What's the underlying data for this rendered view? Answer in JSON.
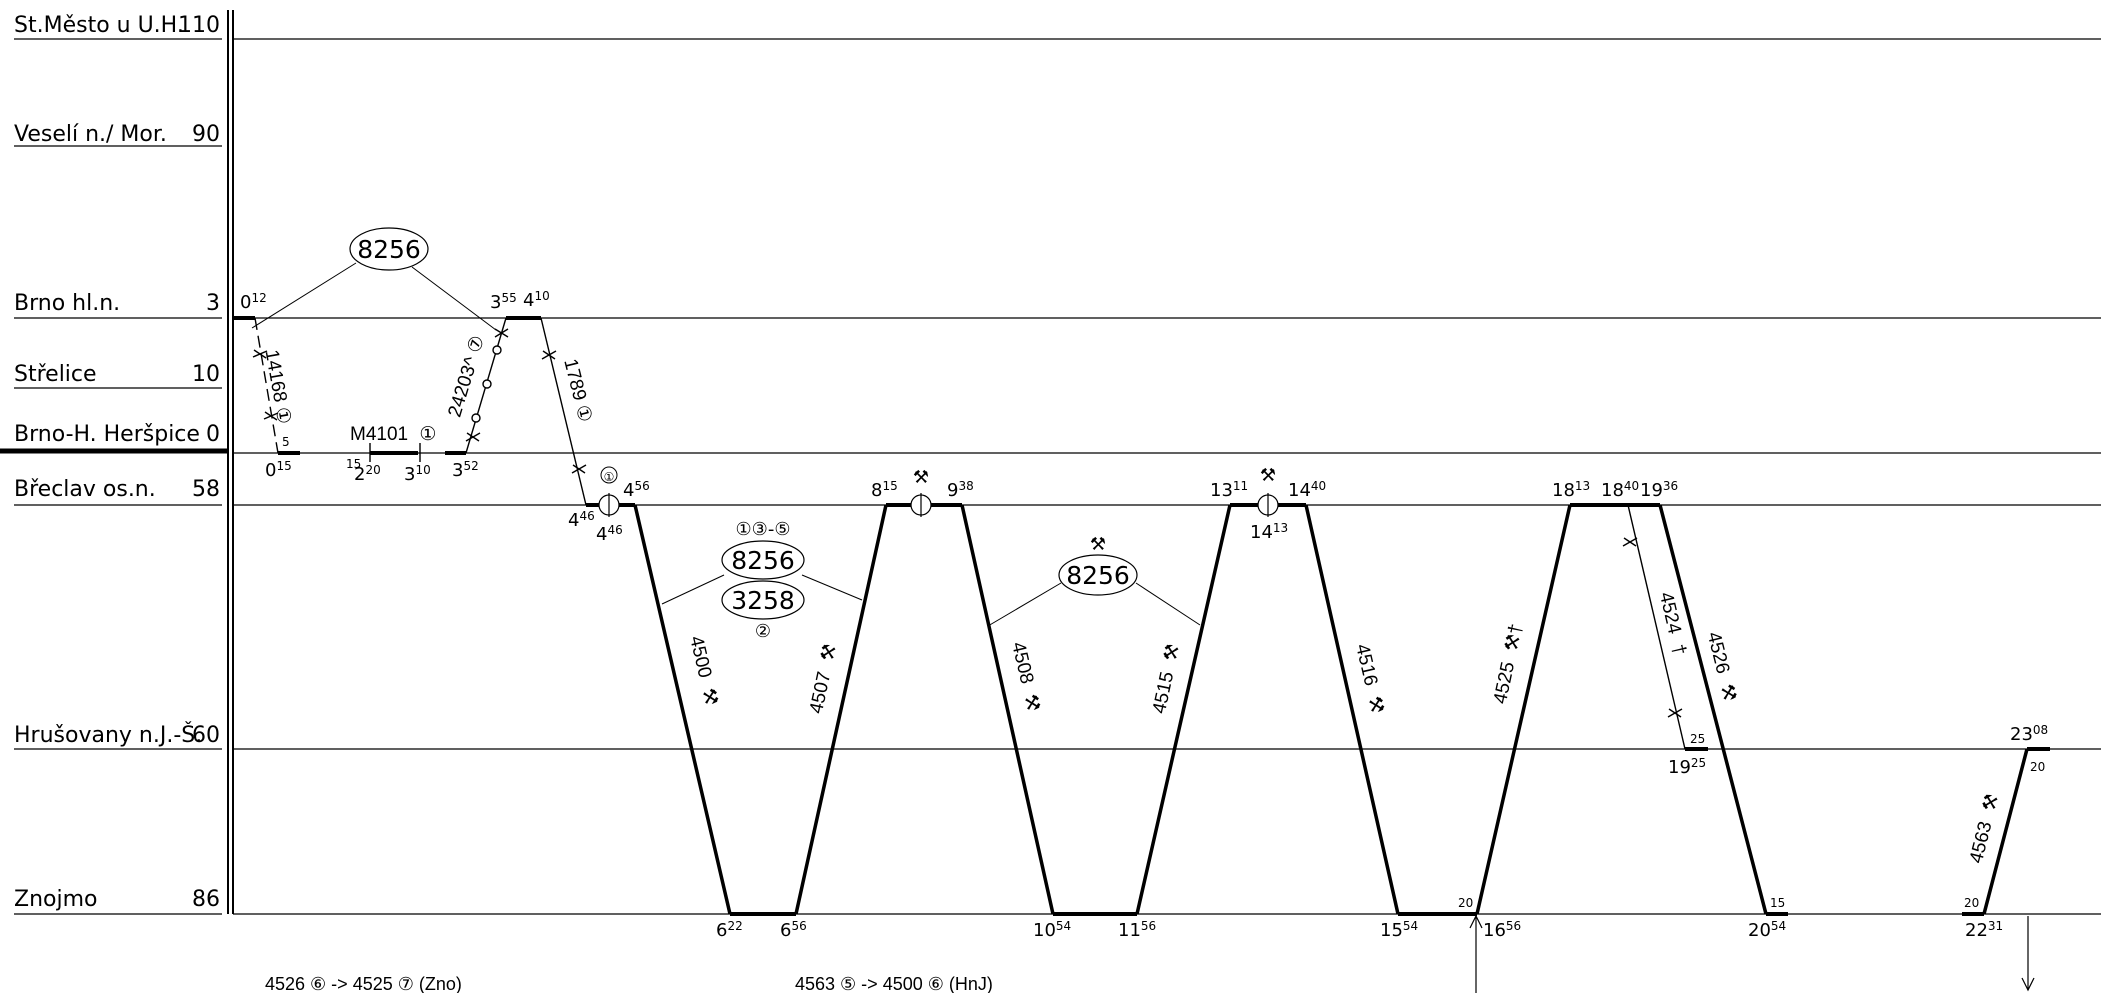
{
  "stations": [
    {
      "id": "stmesto",
      "name": "St.Město u U.H.",
      "km": "110"
    },
    {
      "id": "veseli",
      "name": "Veselí n./ Mor.",
      "km": "90"
    },
    {
      "id": "brnohl",
      "name": "Brno hl.n.",
      "km": "3"
    },
    {
      "id": "strelice",
      "name": "Střelice",
      "km": "10"
    },
    {
      "id": "herspice",
      "name": "Brno-H. Heršpice",
      "km": "0"
    },
    {
      "id": "breclav",
      "name": "Břeclav os.n.",
      "km": "58"
    },
    {
      "id": "hrusovany",
      "name": "Hrušovany n.J.-Š.",
      "km": "60"
    },
    {
      "id": "znojmo",
      "name": "Znojmo",
      "km": "86"
    }
  ],
  "trains": [
    {
      "id": "t14168",
      "number": "14168",
      "suffix": "①"
    },
    {
      "id": "t24203",
      "number": "24203^",
      "suffix": "⑦"
    },
    {
      "id": "t1789",
      "number": "1789",
      "suffix": "①"
    },
    {
      "id": "m4101",
      "number": "M4101",
      "suffix": "①"
    },
    {
      "id": "t4500",
      "number": "4500",
      "suffix": "⚒"
    },
    {
      "id": "t4507",
      "number": "4507",
      "suffix": "⚒"
    },
    {
      "id": "t4508",
      "number": "4508",
      "suffix": "⚒"
    },
    {
      "id": "t4515",
      "number": "4515",
      "suffix": "⚒"
    },
    {
      "id": "t4516",
      "number": "4516",
      "suffix": "⚒"
    },
    {
      "id": "t4525",
      "number": "4525",
      "suffix": "⚒†"
    },
    {
      "id": "t4524",
      "number": "4524",
      "suffix": "†"
    },
    {
      "id": "t4526",
      "number": "4526",
      "suffix": "⚒"
    },
    {
      "id": "t4563",
      "number": "4563",
      "suffix": "⚒"
    }
  ],
  "times": {
    "t0012": {
      "h": "0",
      "m": "12"
    },
    "t0015": {
      "h": "0",
      "m": "15"
    },
    "t5a": {
      "h": "",
      "m": "5"
    },
    "t15a": {
      "h": "",
      "m": "15"
    },
    "t220": {
      "h": "2",
      "m": "20"
    },
    "t310": {
      "h": "3",
      "m": "10"
    },
    "t352": {
      "h": "3",
      "m": "52"
    },
    "t355": {
      "h": "3",
      "m": "55"
    },
    "t410": {
      "h": "4",
      "m": "10"
    },
    "t446a": {
      "h": "4",
      "m": "46"
    },
    "t446b": {
      "h": "4",
      "m": "46"
    },
    "t456": {
      "h": "4",
      "m": "56"
    },
    "t622": {
      "h": "6",
      "m": "22"
    },
    "t656": {
      "h": "6",
      "m": "56"
    },
    "t815": {
      "h": "8",
      "m": "15"
    },
    "t938": {
      "h": "9",
      "m": "38"
    },
    "t1054": {
      "h": "10",
      "m": "54"
    },
    "t1156": {
      "h": "11",
      "m": "56"
    },
    "t1311": {
      "h": "13",
      "m": "11"
    },
    "t1440": {
      "h": "14",
      "m": "40"
    },
    "t1413": {
      "h": "14",
      "m": "13"
    },
    "t1554": {
      "h": "15",
      "m": "54"
    },
    "t20a": {
      "h": "",
      "m": "20"
    },
    "t1656": {
      "h": "16",
      "m": "56"
    },
    "t1813": {
      "h": "18",
      "m": "13"
    },
    "t1840": {
      "h": "18",
      "m": "40"
    },
    "t1936": {
      "h": "19",
      "m": "36"
    },
    "t25a": {
      "h": "",
      "m": "25"
    },
    "t1925": {
      "h": "19",
      "m": "25"
    },
    "t15b": {
      "h": "",
      "m": "15"
    },
    "t2054": {
      "h": "20",
      "m": "54"
    },
    "t20b": {
      "h": "",
      "m": "20"
    },
    "t2231": {
      "h": "22",
      "m": "31"
    },
    "t2308": {
      "h": "23",
      "m": "08"
    },
    "t20c": {
      "h": "",
      "m": "20"
    }
  },
  "circulations": {
    "c1": "8256",
    "c2_top": "8256",
    "c2_bottom": "3258",
    "c2_days_top": "①③-⑤",
    "c2_days_bottom": "②",
    "c3": "8256",
    "c3_days": "⚒"
  },
  "markers": {
    "breclav1": "①",
    "breclav2": "⚒",
    "breclav3": "⚒"
  },
  "notes": [
    "4526 ⑥ -> 4525 ⑦ (Zno)",
    "4563 ⑤ -> 4500 ⑥ (HnJ)"
  ],
  "colors": {
    "ink": "#000000",
    "background": "#ffffff"
  }
}
